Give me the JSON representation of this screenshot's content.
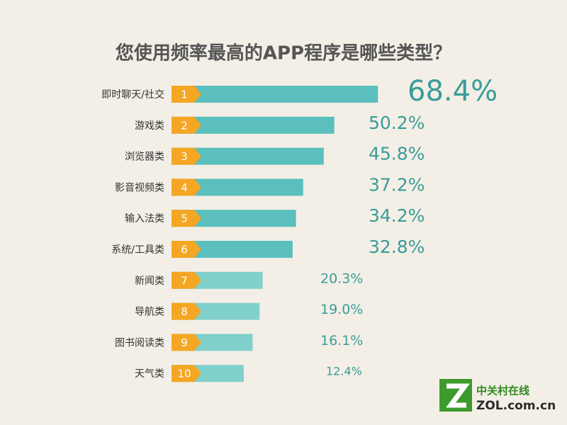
{
  "chart_data": {
    "type": "bar",
    "title": "您使用频率最高的APP程序是哪些类型？",
    "categories": [
      "即时聊天/社交",
      "游戏类",
      "浏览器类",
      "影音视频类",
      "输入法类",
      "系统/工具类",
      "新闻类",
      "导航类",
      "图书阅读类",
      "天气类"
    ],
    "ranks": [
      1,
      2,
      3,
      4,
      5,
      6,
      7,
      8,
      9,
      10
    ],
    "values": [
      68.4,
      50.2,
      45.8,
      37.2,
      34.2,
      32.8,
      20.3,
      19.0,
      16.1,
      12.4
    ],
    "value_labels": [
      "68.4%",
      "50.2%",
      "45.8%",
      "37.2%",
      "34.2%",
      "32.8%",
      "20.3%",
      "19.0%",
      "16.1%",
      "12.4%"
    ],
    "colors": [
      "#5bbfbd",
      "#5bbfbd",
      "#5bbfbd",
      "#5bbfbd",
      "#5bbfbd",
      "#5bbfbd",
      "#80d0cc",
      "#80d0cc",
      "#80d0cc",
      "#80d0cc"
    ],
    "rank_color": "#f5a623",
    "label_color": "#3a9c9a"
  },
  "watermark": {
    "name": "中关村在线",
    "site": "ZOL.com.cn"
  }
}
